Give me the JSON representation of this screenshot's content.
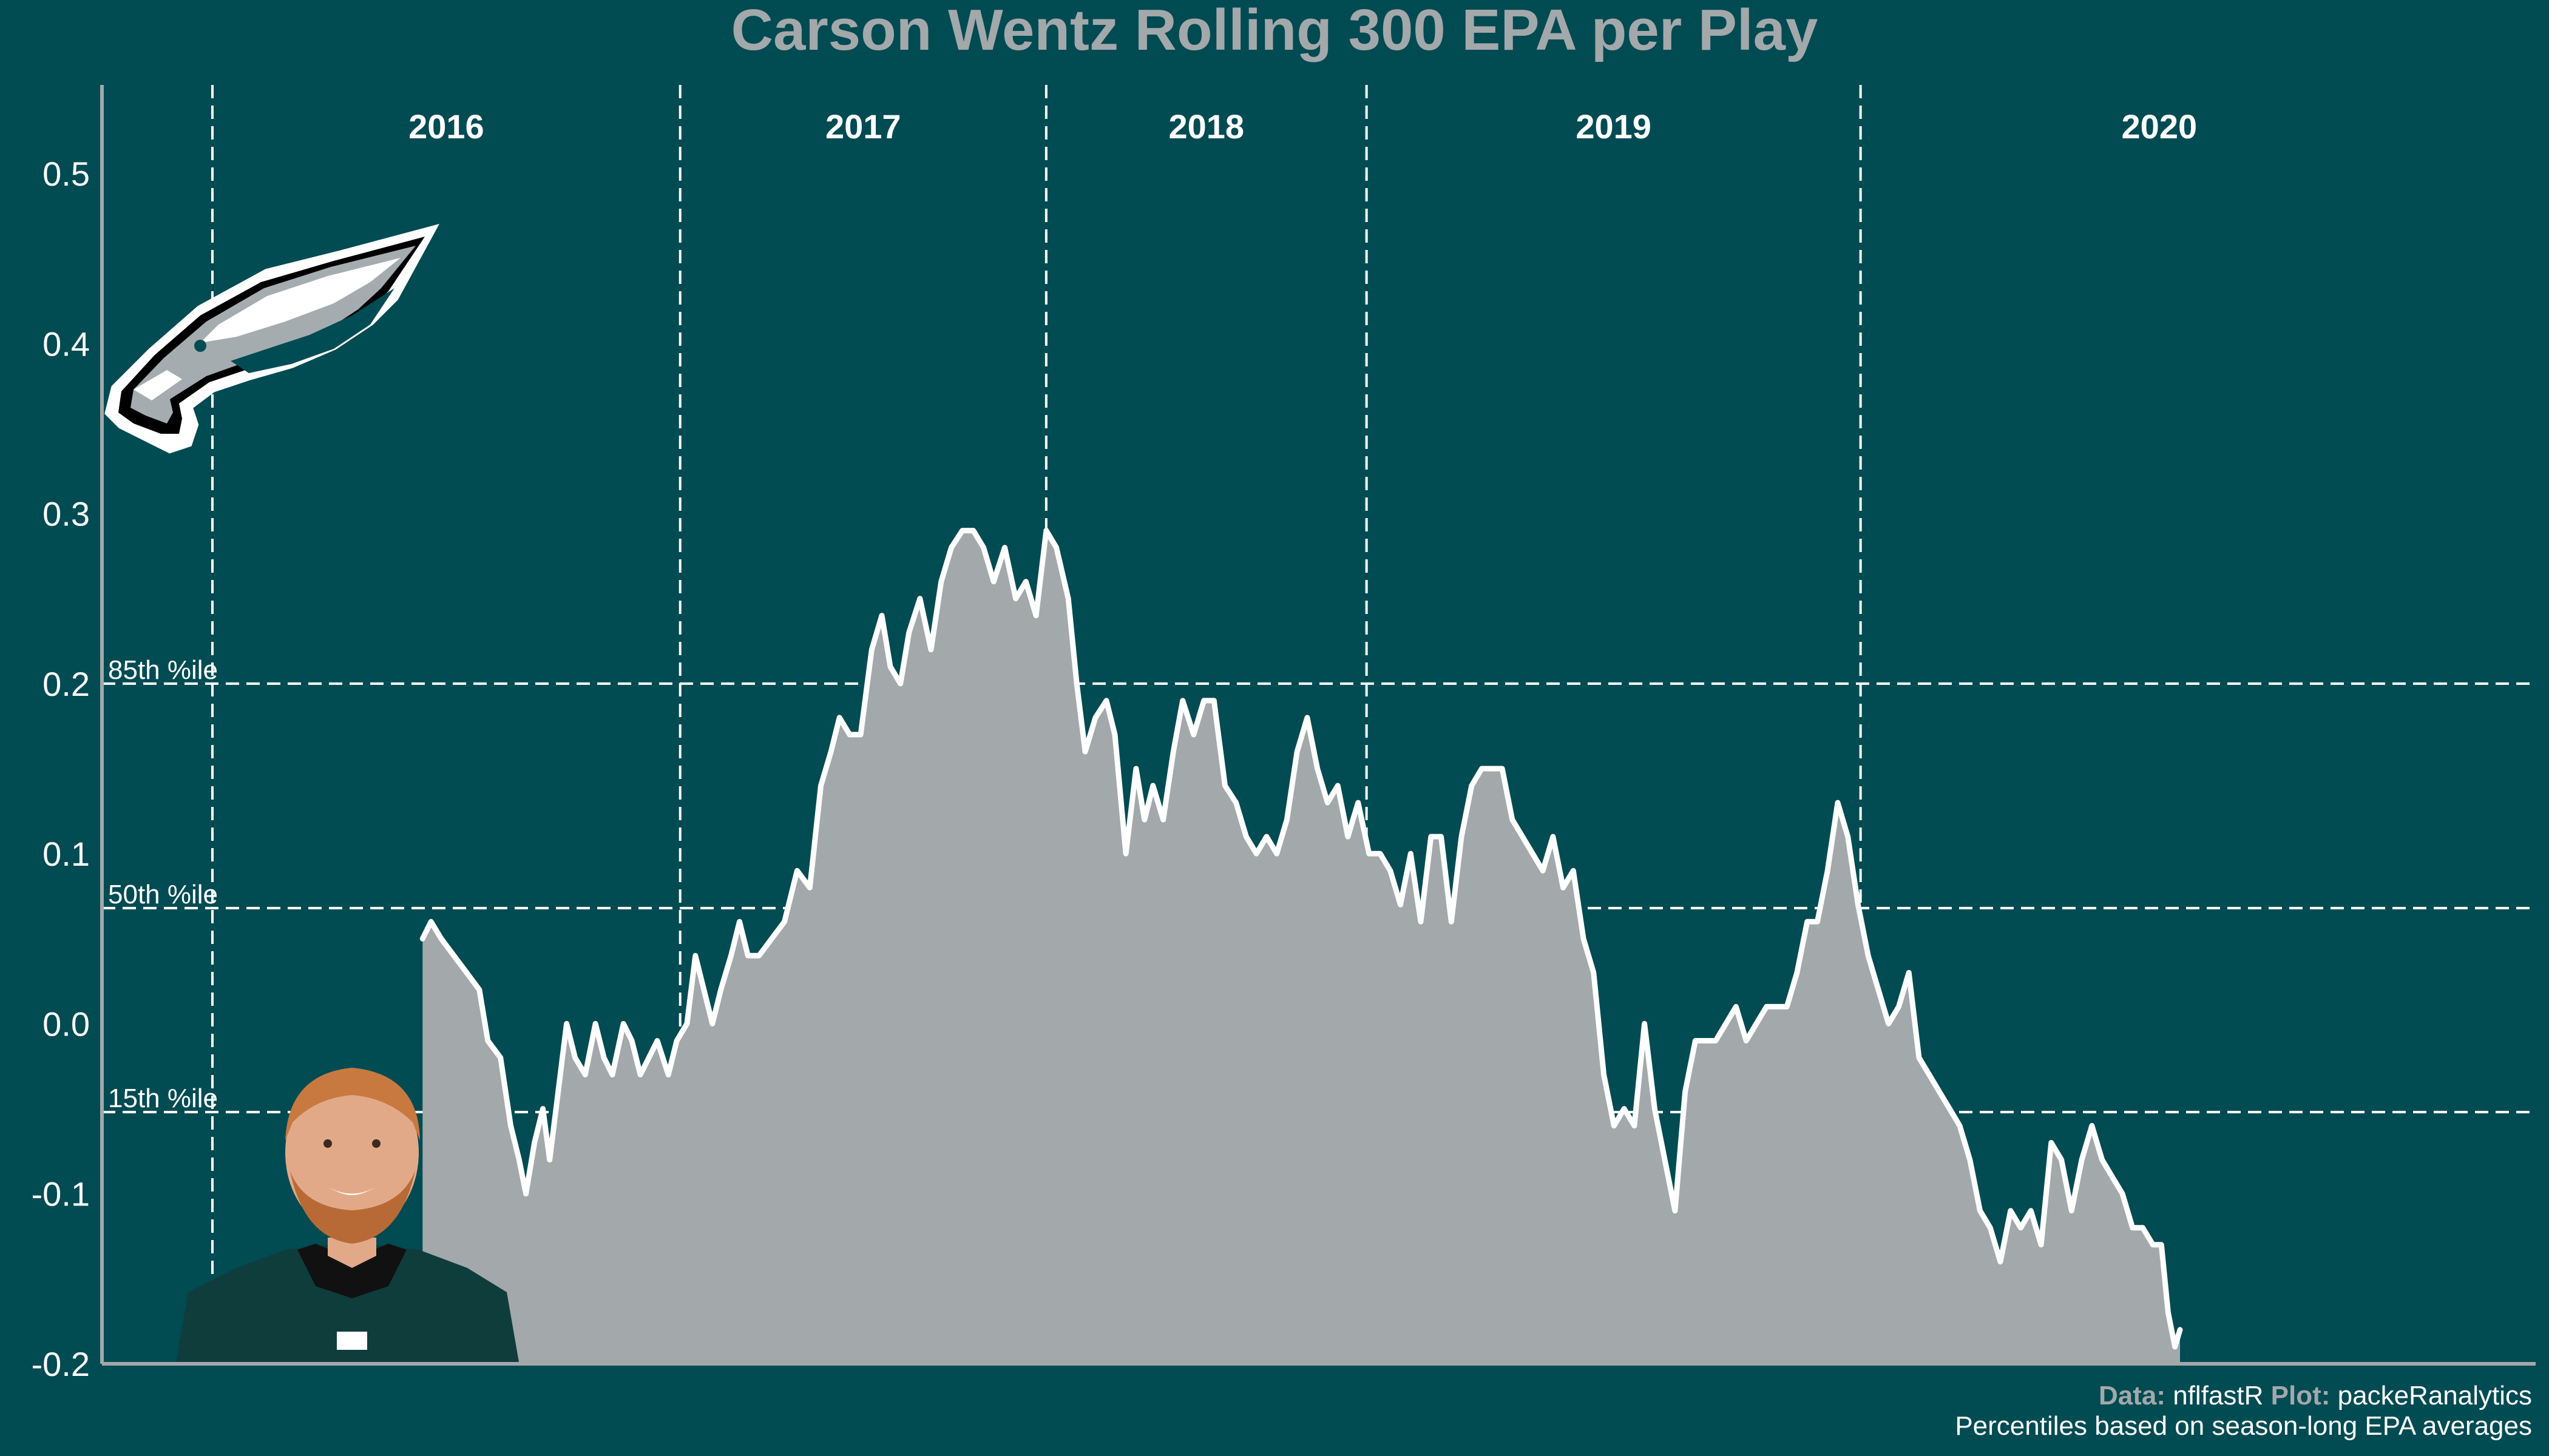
{
  "chart_data": {
    "type": "area",
    "title": "Carson Wentz Rolling 300 EPA per Play",
    "xlabel": "",
    "ylabel": "",
    "ylim": [
      -0.2,
      0.55
    ],
    "yticks": [
      0.5,
      0.4,
      0.3,
      0.2,
      0.1,
      0.0,
      -0.1,
      -0.2
    ],
    "ytick_labels": [
      "0.5",
      "0.4",
      "0.3",
      "0.2",
      "0.1",
      "0.0",
      "-0.1",
      "-0.2"
    ],
    "xlim": [
      0,
      2650
    ],
    "seasons": [
      {
        "label": "2016",
        "start": 0,
        "end": 552
      },
      {
        "label": "2017",
        "start": 552,
        "end": 984
      },
      {
        "label": "2018",
        "start": 984,
        "end": 1362
      },
      {
        "label": "2019",
        "start": 1362,
        "end": 1945
      },
      {
        "label": "2020",
        "start": 1945,
        "end": 2650
      }
    ],
    "season_dividers": [
      552,
      984,
      1362,
      1945
    ],
    "reference_lines": [
      {
        "label": "85th %ile",
        "value": 0.2
      },
      {
        "label": "50th %ile",
        "value": 0.068
      },
      {
        "label": "15th %ile",
        "value": -0.052
      }
    ],
    "series": [
      {
        "name": "Rolling 300 EPA per play",
        "start_play": 248,
        "points": [
          [
            248,
            0.05
          ],
          [
            258,
            0.06
          ],
          [
            270,
            0.05
          ],
          [
            285,
            0.04
          ],
          [
            300,
            0.03
          ],
          [
            315,
            0.02
          ],
          [
            325,
            -0.01
          ],
          [
            340,
            -0.02
          ],
          [
            352,
            -0.06
          ],
          [
            362,
            -0.08
          ],
          [
            370,
            -0.1
          ],
          [
            380,
            -0.07
          ],
          [
            390,
            -0.05
          ],
          [
            398,
            -0.08
          ],
          [
            408,
            -0.04
          ],
          [
            418,
            0.0
          ],
          [
            428,
            -0.02
          ],
          [
            440,
            -0.03
          ],
          [
            452,
            0.0
          ],
          [
            462,
            -0.02
          ],
          [
            472,
            -0.03
          ],
          [
            485,
            0.0
          ],
          [
            495,
            -0.01
          ],
          [
            505,
            -0.03
          ],
          [
            515,
            -0.02
          ],
          [
            525,
            -0.01
          ],
          [
            538,
            -0.03
          ],
          [
            548,
            -0.01
          ],
          [
            560,
            0.0
          ],
          [
            570,
            0.04
          ],
          [
            580,
            0.02
          ],
          [
            590,
            0.0
          ],
          [
            600,
            0.02
          ],
          [
            612,
            0.04
          ],
          [
            622,
            0.06
          ],
          [
            632,
            0.04
          ],
          [
            645,
            0.04
          ],
          [
            660,
            0.05
          ],
          [
            675,
            0.06
          ],
          [
            690,
            0.09
          ],
          [
            705,
            0.08
          ],
          [
            718,
            0.14
          ],
          [
            730,
            0.16
          ],
          [
            740,
            0.18
          ],
          [
            752,
            0.17
          ],
          [
            765,
            0.17
          ],
          [
            778,
            0.22
          ],
          [
            790,
            0.24
          ],
          [
            800,
            0.21
          ],
          [
            812,
            0.2
          ],
          [
            822,
            0.23
          ],
          [
            835,
            0.25
          ],
          [
            848,
            0.22
          ],
          [
            860,
            0.26
          ],
          [
            872,
            0.28
          ],
          [
            885,
            0.29
          ],
          [
            898,
            0.29
          ],
          [
            910,
            0.28
          ],
          [
            922,
            0.26
          ],
          [
            935,
            0.28
          ],
          [
            948,
            0.25
          ],
          [
            960,
            0.26
          ],
          [
            972,
            0.24
          ],
          [
            984,
            0.29
          ],
          [
            996,
            0.28
          ],
          [
            1010,
            0.25
          ],
          [
            1020,
            0.2
          ],
          [
            1030,
            0.16
          ],
          [
            1042,
            0.18
          ],
          [
            1055,
            0.19
          ],
          [
            1065,
            0.17
          ],
          [
            1078,
            0.1
          ],
          [
            1090,
            0.15
          ],
          [
            1100,
            0.12
          ],
          [
            1110,
            0.14
          ],
          [
            1122,
            0.12
          ],
          [
            1134,
            0.16
          ],
          [
            1145,
            0.19
          ],
          [
            1158,
            0.17
          ],
          [
            1170,
            0.19
          ],
          [
            1182,
            0.19
          ],
          [
            1195,
            0.14
          ],
          [
            1208,
            0.13
          ],
          [
            1220,
            0.11
          ],
          [
            1232,
            0.1
          ],
          [
            1244,
            0.11
          ],
          [
            1256,
            0.1
          ],
          [
            1268,
            0.12
          ],
          [
            1280,
            0.16
          ],
          [
            1292,
            0.18
          ],
          [
            1304,
            0.15
          ],
          [
            1316,
            0.13
          ],
          [
            1328,
            0.14
          ],
          [
            1340,
            0.11
          ],
          [
            1352,
            0.13
          ],
          [
            1365,
            0.1
          ],
          [
            1378,
            0.1
          ],
          [
            1390,
            0.09
          ],
          [
            1402,
            0.07
          ],
          [
            1414,
            0.1
          ],
          [
            1426,
            0.06
          ],
          [
            1438,
            0.11
          ],
          [
            1450,
            0.11
          ],
          [
            1462,
            0.06
          ],
          [
            1474,
            0.11
          ],
          [
            1486,
            0.14
          ],
          [
            1498,
            0.15
          ],
          [
            1510,
            0.15
          ],
          [
            1522,
            0.15
          ],
          [
            1534,
            0.12
          ],
          [
            1546,
            0.11
          ],
          [
            1558,
            0.1
          ],
          [
            1570,
            0.09
          ],
          [
            1582,
            0.11
          ],
          [
            1594,
            0.08
          ],
          [
            1606,
            0.09
          ],
          [
            1618,
            0.05
          ],
          [
            1630,
            0.03
          ],
          [
            1642,
            -0.03
          ],
          [
            1654,
            -0.06
          ],
          [
            1666,
            -0.05
          ],
          [
            1678,
            -0.06
          ],
          [
            1690,
            0.0
          ],
          [
            1702,
            -0.05
          ],
          [
            1714,
            -0.08
          ],
          [
            1726,
            -0.11
          ],
          [
            1738,
            -0.04
          ],
          [
            1750,
            -0.01
          ],
          [
            1762,
            -0.01
          ],
          [
            1774,
            -0.01
          ],
          [
            1786,
            0.0
          ],
          [
            1798,
            0.01
          ],
          [
            1810,
            -0.01
          ],
          [
            1822,
            0.0
          ],
          [
            1834,
            0.01
          ],
          [
            1846,
            0.01
          ],
          [
            1858,
            0.01
          ],
          [
            1870,
            0.03
          ],
          [
            1882,
            0.06
          ],
          [
            1894,
            0.06
          ],
          [
            1906,
            0.09
          ],
          [
            1918,
            0.13
          ],
          [
            1930,
            0.11
          ],
          [
            1942,
            0.07
          ],
          [
            1954,
            0.04
          ],
          [
            1966,
            0.02
          ],
          [
            1978,
            0.0
          ],
          [
            1990,
            0.01
          ],
          [
            2002,
            0.03
          ],
          [
            2014,
            -0.02
          ],
          [
            2026,
            -0.03
          ],
          [
            2038,
            -0.04
          ],
          [
            2050,
            -0.05
          ],
          [
            2062,
            -0.06
          ],
          [
            2074,
            -0.08
          ],
          [
            2086,
            -0.11
          ],
          [
            2098,
            -0.12
          ],
          [
            2110,
            -0.14
          ],
          [
            2122,
            -0.11
          ],
          [
            2134,
            -0.12
          ],
          [
            2146,
            -0.11
          ],
          [
            2158,
            -0.13
          ],
          [
            2170,
            -0.07
          ],
          [
            2182,
            -0.08
          ],
          [
            2194,
            -0.11
          ],
          [
            2206,
            -0.08
          ],
          [
            2218,
            -0.06
          ],
          [
            2230,
            -0.08
          ],
          [
            2242,
            -0.09
          ],
          [
            2254,
            -0.1
          ],
          [
            2266,
            -0.12
          ],
          [
            2278,
            -0.12
          ],
          [
            2290,
            -0.13
          ],
          [
            2300,
            -0.13
          ],
          [
            2308,
            -0.17
          ],
          [
            2316,
            -0.19
          ],
          [
            2322,
            -0.18
          ]
        ]
      }
    ],
    "logos": [
      "eagles-logo",
      "player-headshot"
    ]
  },
  "caption": {
    "line1_data_bold": "Data:",
    "line1_data": " nflfastR ",
    "line1_plot_bold": "Plot:",
    "line1_plot": " packeRanalytics",
    "line2": "Percentiles based on season-long EPA averages"
  },
  "colors": {
    "background": "#014b53",
    "area_fill": "#a3a8ab",
    "line": "#ffffff",
    "axis": "#a3a8ab",
    "title": "#a3a8ab",
    "eagle_green": "#004c54",
    "eagle_silver": "#a5acaf",
    "jersey_green": "#0f3d3b",
    "skin": "#e2a989",
    "hair": "#c8793f"
  }
}
